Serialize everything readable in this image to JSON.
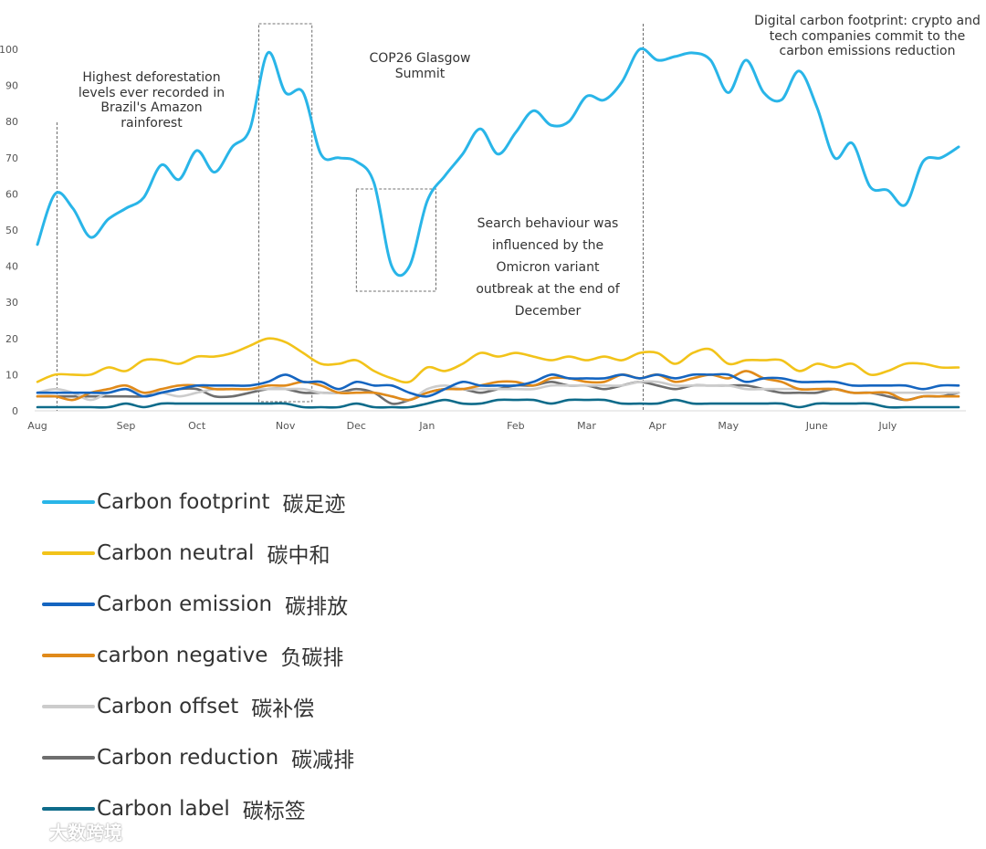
{
  "chart_data": {
    "type": "line",
    "ylim": [
      0,
      100
    ],
    "yticks": [
      0,
      10,
      20,
      30,
      40,
      50,
      60,
      70,
      80,
      90,
      100
    ],
    "x_index_max": 52,
    "xticks": [
      {
        "label": "Aug",
        "x": 0
      },
      {
        "label": "Sep",
        "x": 5
      },
      {
        "label": "Oct",
        "x": 9
      },
      {
        "label": "Nov",
        "x": 14
      },
      {
        "label": "Dec",
        "x": 18
      },
      {
        "label": "Jan",
        "x": 22
      },
      {
        "label": "Feb",
        "x": 27
      },
      {
        "label": "Mar",
        "x": 31
      },
      {
        "label": "Apr",
        "x": 35
      },
      {
        "label": "May",
        "x": 39
      },
      {
        "label": "June",
        "x": 44
      },
      {
        "label": "July",
        "x": 48
      }
    ],
    "grid": false,
    "legend_position": "bottom",
    "series": [
      {
        "name": "Carbon footprint",
        "name_cn": "碳足迹",
        "color": "#29b5e8",
        "values": [
          46,
          60,
          56,
          48,
          53,
          56,
          59,
          68,
          64,
          72,
          66,
          73,
          78,
          99,
          88,
          88,
          71,
          70,
          69,
          63,
          40,
          40,
          58,
          65,
          71,
          78,
          71,
          77,
          83,
          79,
          80,
          87,
          86,
          91,
          100,
          97,
          98,
          99,
          97,
          88,
          97,
          88,
          86,
          94,
          84,
          70,
          74,
          62,
          61,
          57,
          69,
          70,
          73
        ]
      },
      {
        "name": "Carbon neutral",
        "name_cn": "碳中和",
        "color": "#f2c31a",
        "values": [
          8,
          10,
          10,
          10,
          12,
          11,
          14,
          14,
          13,
          15,
          15,
          16,
          18,
          20,
          19,
          16,
          13,
          13,
          14,
          11,
          9,
          8,
          12,
          11,
          13,
          16,
          15,
          16,
          15,
          14,
          15,
          14,
          15,
          14,
          16,
          16,
          13,
          16,
          17,
          13,
          14,
          14,
          14,
          11,
          13,
          12,
          13,
          10,
          11,
          13,
          13,
          12,
          12
        ]
      },
      {
        "name": "Carbon emission",
        "name_cn": "碳排放",
        "color": "#1565c0",
        "values": [
          5,
          5,
          5,
          5,
          5,
          6,
          4,
          5,
          6,
          7,
          7,
          7,
          7,
          8,
          10,
          8,
          8,
          6,
          8,
          7,
          7,
          5,
          4,
          6,
          8,
          7,
          7,
          7,
          8,
          10,
          9,
          9,
          9,
          10,
          9,
          10,
          9,
          10,
          10,
          10,
          8,
          9,
          9,
          8,
          8,
          8,
          7,
          7,
          7,
          7,
          6,
          7,
          7
        ]
      },
      {
        "name": "carbon negative",
        "name_cn": "负碳排",
        "color": "#e08a1a",
        "values": [
          4,
          4,
          3,
          5,
          6,
          7,
          5,
          6,
          7,
          7,
          6,
          6,
          6,
          7,
          7,
          8,
          7,
          5,
          5,
          5,
          4,
          3,
          5,
          6,
          6,
          7,
          8,
          8,
          7,
          9,
          9,
          8,
          8,
          10,
          9,
          10,
          8,
          9,
          10,
          9,
          11,
          9,
          8,
          6,
          6,
          6,
          5,
          5,
          5,
          3,
          4,
          4,
          4
        ]
      },
      {
        "name": "Carbon offset",
        "name_cn": "碳补偿",
        "color": "#cccccc",
        "values": [
          5,
          6,
          5,
          3,
          5,
          6,
          5,
          5,
          4,
          5,
          6,
          6,
          6,
          6,
          6,
          6,
          5,
          5,
          5,
          5,
          4,
          3,
          6,
          7,
          6,
          6,
          6,
          6,
          6,
          7,
          7,
          7,
          7,
          7,
          8,
          8,
          7,
          7,
          7,
          7,
          6,
          6,
          6,
          6,
          6,
          6,
          5,
          5,
          5,
          5,
          5,
          5,
          5
        ]
      },
      {
        "name": "Carbon reduction",
        "name_cn": "碳减排",
        "color": "#6e6e6e",
        "values": [
          4,
          4,
          4,
          4,
          4,
          4,
          4,
          5,
          6,
          6,
          4,
          4,
          5,
          6,
          6,
          5,
          5,
          5,
          6,
          5,
          2,
          3,
          5,
          6,
          6,
          5,
          6,
          7,
          7,
          8,
          7,
          7,
          6,
          7,
          8,
          7,
          6,
          7,
          7,
          7,
          7,
          6,
          5,
          5,
          5,
          6,
          5,
          5,
          4,
          3,
          4,
          4,
          5
        ]
      },
      {
        "name": "Carbon label",
        "name_cn": "碳标签",
        "color": "#0e6b8a",
        "values": [
          1,
          1,
          1,
          1,
          1,
          2,
          1,
          2,
          2,
          2,
          2,
          2,
          2,
          2,
          2,
          1,
          1,
          1,
          2,
          1,
          1,
          1,
          2,
          3,
          2,
          2,
          3,
          3,
          3,
          2,
          3,
          3,
          3,
          2,
          2,
          2,
          3,
          2,
          2,
          2,
          2,
          2,
          2,
          1,
          2,
          2,
          2,
          2,
          1,
          1,
          1,
          1,
          1
        ]
      }
    ],
    "annotations": [
      {
        "text": "Highest deforestation\nlevels ever recorded in\nBrazil's Amazon\nrainforest"
      },
      {
        "text": "COP26 Glasgow\nSummit"
      },
      {
        "text": "Search behaviour was\ninfluenced by the\nOmicron variant\noutbreak at the end of\nDecember"
      },
      {
        "text": "Digital carbon footprint: crypto and\ntech companies commit to the\ncarbon emissions reduction"
      }
    ]
  },
  "watermark": {
    "text": "大数跨境"
  }
}
